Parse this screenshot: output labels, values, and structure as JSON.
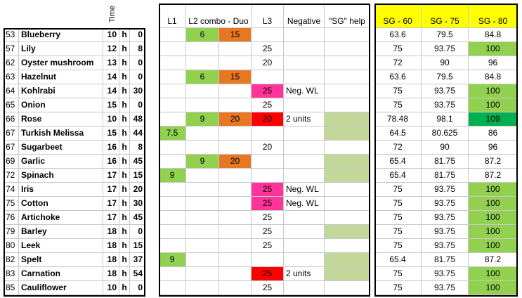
{
  "header": {
    "time": "Time",
    "l1": "L1",
    "l2": "L2 combo - Duo",
    "l3": "L3",
    "negative": "Negative",
    "help": "\"SG\" help",
    "sg60": "SG - 60",
    "sg75": "SG - 75",
    "sg80": "SG - 80",
    "fills": {
      "sg60": "#ffff00",
      "sg75": "#ffff00",
      "sg80": "#ffff00"
    }
  },
  "rows": [
    {
      "id": 53,
      "name": "Blueberry",
      "hours": 10,
      "unit": "h",
      "minutes": 0,
      "l1": null,
      "l2a": 6,
      "l2b": 15,
      "l3": null,
      "negative": null,
      "help": null,
      "sg60": 63.6,
      "sg75": 79.5,
      "sg80": 84.8,
      "fills": {
        "l2a": "#92d050",
        "l2b": "#e87722"
      }
    },
    {
      "id": 57,
      "name": "Lily",
      "hours": 12,
      "unit": "h",
      "minutes": 8,
      "l1": null,
      "l2a": null,
      "l2b": null,
      "l3": 25,
      "negative": null,
      "help": null,
      "sg60": 75,
      "sg75": 93.75,
      "sg80": 100,
      "fills": {
        "sg80": "#92d050"
      }
    },
    {
      "id": 62,
      "name": "Oyster mushroom",
      "hours": 13,
      "unit": "h",
      "minutes": 0,
      "l1": null,
      "l2a": null,
      "l2b": null,
      "l3": 20,
      "negative": null,
      "help": null,
      "sg60": 72,
      "sg75": 90,
      "sg80": 96,
      "fills": {}
    },
    {
      "id": 63,
      "name": "Hazelnut",
      "hours": 14,
      "unit": "h",
      "minutes": 0,
      "l1": null,
      "l2a": 6,
      "l2b": 15,
      "l3": null,
      "negative": null,
      "help": null,
      "sg60": 63.6,
      "sg75": 79.5,
      "sg80": 84.8,
      "fills": {
        "l2a": "#92d050",
        "l2b": "#e87722"
      }
    },
    {
      "id": 64,
      "name": "Kohlrabi",
      "hours": 14,
      "unit": "h",
      "minutes": 30,
      "l1": null,
      "l2a": null,
      "l2b": null,
      "l3": 25,
      "negative": "Neg. WL",
      "help": null,
      "sg60": 75,
      "sg75": 93.75,
      "sg80": 100,
      "fills": {
        "l3": "#ff3399",
        "sg80": "#92d050"
      }
    },
    {
      "id": 65,
      "name": "Onion",
      "hours": 15,
      "unit": "h",
      "minutes": 0,
      "l1": null,
      "l2a": null,
      "l2b": null,
      "l3": 25,
      "negative": null,
      "help": null,
      "sg60": 75,
      "sg75": 93.75,
      "sg80": 100,
      "fills": {
        "sg80": "#92d050"
      }
    },
    {
      "id": 66,
      "name": "Rose",
      "hours": 10,
      "unit": "h",
      "minutes": 48,
      "l1": null,
      "l2a": 9,
      "l2b": 20,
      "l3": 20,
      "negative": "2 units",
      "help": null,
      "sg60": 78.48,
      "sg75": 98.1,
      "sg80": 109,
      "fills": {
        "l2a": "#92d050",
        "l2b": "#e87722",
        "l3": "#ff0000",
        "help": "#c4d79b",
        "sg80": "#00b050"
      }
    },
    {
      "id": 67,
      "name": "Turkish Melissa",
      "hours": 15,
      "unit": "h",
      "minutes": 44,
      "l1": 7.5,
      "l2a": null,
      "l2b": null,
      "l3": null,
      "negative": null,
      "help": null,
      "sg60": 64.5,
      "sg75": 80.625,
      "sg80": 86,
      "fills": {
        "l1": "#92d050",
        "help": "#c4d79b"
      }
    },
    {
      "id": 67,
      "name": "Sugarbeet",
      "hours": 16,
      "unit": "h",
      "minutes": 8,
      "l1": null,
      "l2a": null,
      "l2b": null,
      "l3": 20,
      "negative": null,
      "help": null,
      "sg60": 72,
      "sg75": 90,
      "sg80": 96,
      "fills": {}
    },
    {
      "id": 69,
      "name": "Garlic",
      "hours": 16,
      "unit": "h",
      "minutes": 45,
      "l1": null,
      "l2a": 9,
      "l2b": 20,
      "l3": null,
      "negative": null,
      "help": null,
      "sg60": 65.4,
      "sg75": 81.75,
      "sg80": 87.2,
      "fills": {
        "l2a": "#92d050",
        "l2b": "#e87722",
        "help": "#c4d79b"
      }
    },
    {
      "id": 72,
      "name": "Spinach",
      "hours": 17,
      "unit": "h",
      "minutes": 15,
      "l1": 9,
      "l2a": null,
      "l2b": null,
      "l3": null,
      "negative": null,
      "help": null,
      "sg60": 65.4,
      "sg75": 81.75,
      "sg80": 87.2,
      "fills": {
        "l1": "#92d050",
        "help": "#c4d79b"
      }
    },
    {
      "id": 74,
      "name": "Iris",
      "hours": 17,
      "unit": "h",
      "minutes": 20,
      "l1": null,
      "l2a": null,
      "l2b": null,
      "l3": 25,
      "negative": "Neg. WL",
      "help": null,
      "sg60": 75,
      "sg75": 93.75,
      "sg80": 100,
      "fills": {
        "l3": "#ff3399",
        "sg80": "#92d050"
      }
    },
    {
      "id": 75,
      "name": "Cotton",
      "hours": 17,
      "unit": "h",
      "minutes": 30,
      "l1": null,
      "l2a": null,
      "l2b": null,
      "l3": 25,
      "negative": "Neg. WL",
      "help": null,
      "sg60": 75,
      "sg75": 93.75,
      "sg80": 100,
      "fills": {
        "l3": "#ff3399",
        "sg80": "#92d050"
      }
    },
    {
      "id": 76,
      "name": "Artichoke",
      "hours": 17,
      "unit": "h",
      "minutes": 45,
      "l1": null,
      "l2a": null,
      "l2b": null,
      "l3": 25,
      "negative": null,
      "help": null,
      "sg60": 75,
      "sg75": 93.75,
      "sg80": 100,
      "fills": {
        "sg80": "#92d050"
      }
    },
    {
      "id": 79,
      "name": "Barley",
      "hours": 18,
      "unit": "h",
      "minutes": 0,
      "l1": null,
      "l2a": null,
      "l2b": null,
      "l3": 25,
      "negative": null,
      "help": null,
      "sg60": 75,
      "sg75": 93.75,
      "sg80": 100,
      "fills": {
        "help": "#c4d79b",
        "sg80": "#92d050"
      }
    },
    {
      "id": 80,
      "name": "Leek",
      "hours": 18,
      "unit": "h",
      "minutes": 15,
      "l1": null,
      "l2a": null,
      "l2b": null,
      "l3": 25,
      "negative": null,
      "help": null,
      "sg60": 75,
      "sg75": 93.75,
      "sg80": 100,
      "fills": {
        "sg80": "#92d050"
      }
    },
    {
      "id": 82,
      "name": "Spelt",
      "hours": 18,
      "unit": "h",
      "minutes": 37,
      "l1": 9,
      "l2a": null,
      "l2b": null,
      "l3": null,
      "negative": null,
      "help": null,
      "sg60": 65.4,
      "sg75": 81.75,
      "sg80": 87.2,
      "fills": {
        "l1": "#92d050",
        "help": "#c4d79b"
      }
    },
    {
      "id": 83,
      "name": "Carnation",
      "hours": 18,
      "unit": "h",
      "minutes": 54,
      "l1": null,
      "l2a": null,
      "l2b": null,
      "l3": 25,
      "negative": "2 units",
      "help": null,
      "sg60": 75,
      "sg75": 93.75,
      "sg80": 100,
      "fills": {
        "l3": "#ff0000",
        "help": "#c4d79b",
        "sg80": "#92d050"
      }
    },
    {
      "id": 85,
      "name": "Cauliflower",
      "hours": 10,
      "unit": "h",
      "minutes": 0,
      "l1": null,
      "l2a": null,
      "l2b": null,
      "l3": 25,
      "negative": null,
      "help": null,
      "sg60": 75,
      "sg75": 93.75,
      "sg80": 100,
      "fills": {
        "sg80": "#92d050"
      }
    }
  ]
}
